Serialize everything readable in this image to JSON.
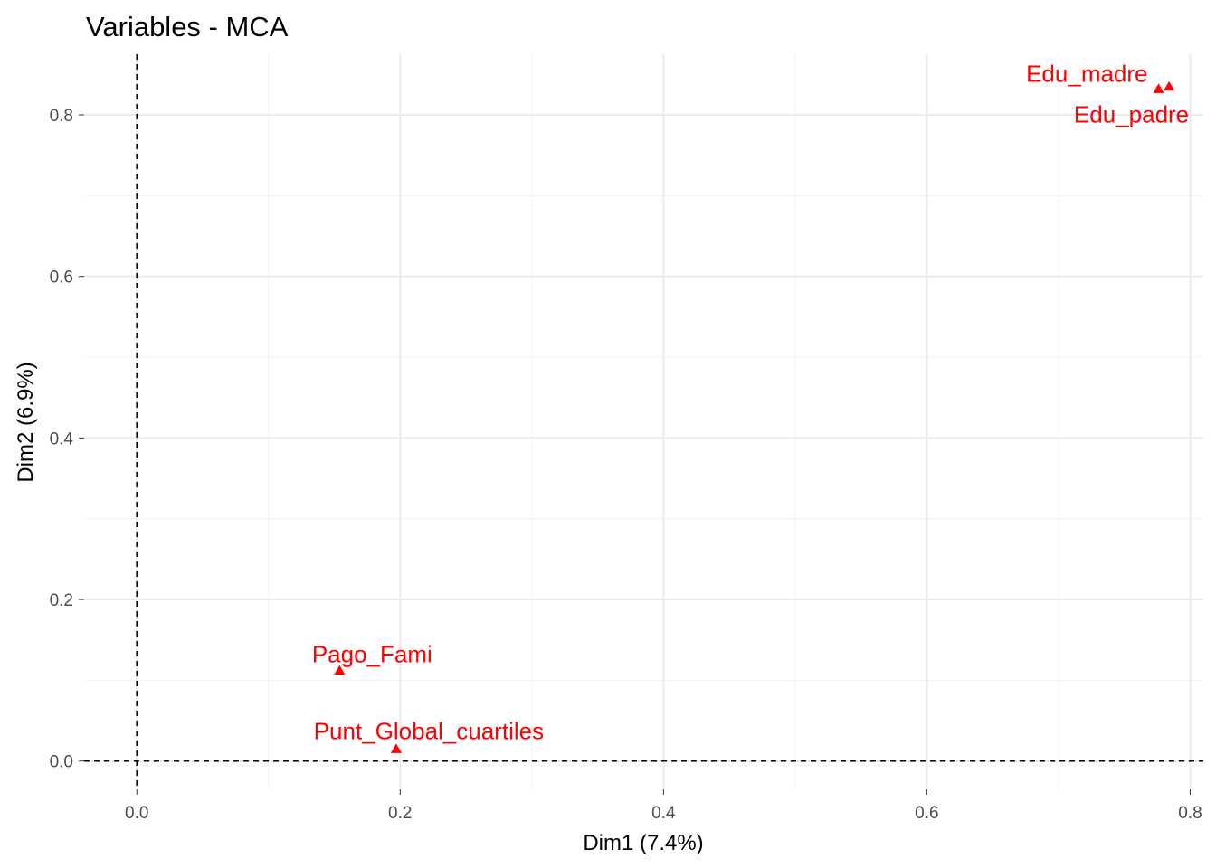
{
  "chart_data": {
    "type": "scatter",
    "title": "Variables - MCA",
    "xlabel": "Dim1 (7.4%)",
    "ylabel": "Dim2 (6.9%)",
    "xlim": [
      -0.04,
      0.81
    ],
    "ylim": [
      -0.035,
      0.875
    ],
    "x_ticks": [
      0.0,
      0.2,
      0.4,
      0.6,
      0.8
    ],
    "x_tick_labels": [
      "0.0",
      "0.2",
      "0.4",
      "0.6",
      "0.8"
    ],
    "x_minor": [
      0.1,
      0.3,
      0.5,
      0.7
    ],
    "y_ticks": [
      0.0,
      0.2,
      0.4,
      0.6,
      0.8
    ],
    "y_tick_labels": [
      "0.0",
      "0.2",
      "0.4",
      "0.6",
      "0.8"
    ],
    "y_minor": [
      0.1,
      0.3,
      0.5,
      0.7
    ],
    "grid": true,
    "reference_lines": {
      "x": 0,
      "y": 0,
      "style": "dashed"
    },
    "marker": "triangle",
    "color": "#ff0000",
    "points": [
      {
        "label": "Edu_madre",
        "x": 0.776,
        "y": 0.832
      },
      {
        "label": "Edu_padre",
        "x": 0.784,
        "y": 0.835
      },
      {
        "label": "Pago_Fami",
        "x": 0.154,
        "y": 0.112
      },
      {
        "label": "Punt_Global_cuartiles",
        "x": 0.197,
        "y": 0.015
      }
    ]
  }
}
